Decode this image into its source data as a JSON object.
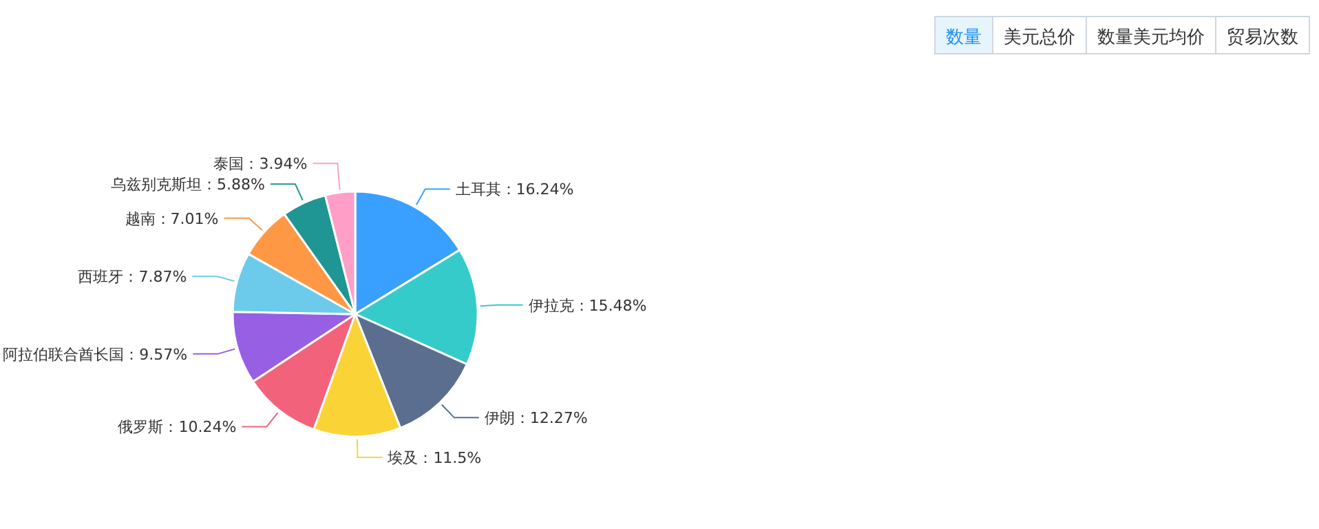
{
  "chart_data": {
    "type": "pie",
    "categories": [
      "土耳其",
      "伊拉克",
      "伊朗",
      "埃及",
      "俄罗斯",
      "阿拉伯联合酋长国",
      "西班牙",
      "越南",
      "乌兹别克斯坦",
      "泰国"
    ],
    "values": [
      16.24,
      15.48,
      12.27,
      11.5,
      10.24,
      9.57,
      7.87,
      7.01,
      5.88,
      3.94
    ],
    "colors": [
      "#3aa0ff",
      "#36cbcb",
      "#5b6e8f",
      "#fad337",
      "#f2637b",
      "#975fe4",
      "#6ccbeb",
      "#ff9845",
      "#1f9693",
      "#ff9fc8"
    ],
    "value_labels": [
      "：16.24%",
      "：15.48%",
      "：12.27%",
      "：11.5%",
      "：10.24%",
      "：9.57%",
      "：7.87%",
      "：7.01%",
      "：5.88%",
      "：3.94%"
    ],
    "annotations": [
      "数量",
      "美元总价",
      "数量美元均价",
      "贸易次数"
    ]
  }
}
